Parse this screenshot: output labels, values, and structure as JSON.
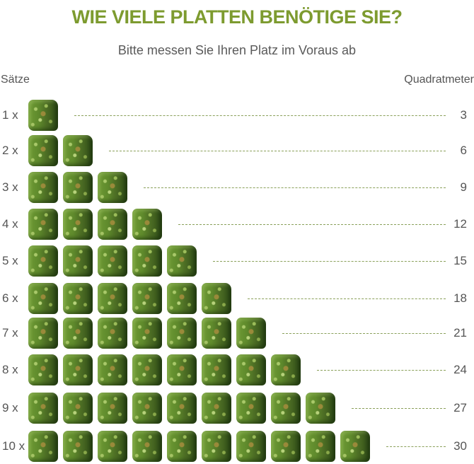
{
  "header": {
    "title": "WIE VIELE PLATTEN BENÖTIGE SIE?",
    "subtitle": "Bitte messen Sie Ihren Platz im Voraus ab"
  },
  "columns": {
    "left": "Sätze",
    "right": "Quadratmeter"
  },
  "colors": {
    "title": "#7d9b2f",
    "text": "#555555",
    "dash": "#8aa05a",
    "tile_green": "#5f8a2c"
  },
  "tile_icon": "green-hedge-panel",
  "rows": [
    {
      "label": "1 x",
      "count": 1,
      "value": "3"
    },
    {
      "label": "2 x",
      "count": 2,
      "value": "6"
    },
    {
      "label": "3 x",
      "count": 3,
      "value": "9"
    },
    {
      "label": "4 x",
      "count": 4,
      "value": "12"
    },
    {
      "label": "5 x",
      "count": 5,
      "value": "15"
    },
    {
      "label": "6 x",
      "count": 6,
      "value": "18"
    },
    {
      "label": "7 x",
      "count": 7,
      "value": "21"
    },
    {
      "label": "8 x",
      "count": 8,
      "value": "24"
    },
    {
      "label": "9 x",
      "count": 9,
      "value": "27"
    },
    {
      "label": "10 x",
      "count": 10,
      "value": "30"
    }
  ]
}
